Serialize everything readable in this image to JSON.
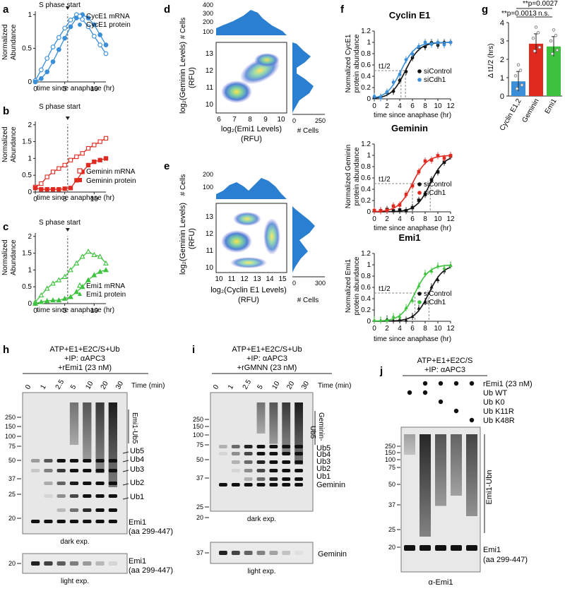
{
  "panels": {
    "a": {
      "letter": "a",
      "note": "S phase start",
      "xlabel": "time since anaphase (hr)",
      "ylabel1": "Normalized",
      "ylabel2": "Abundance",
      "legend": [
        "CycE1 mRNA",
        "CycE1 protein"
      ],
      "xticks": [
        "0",
        "5",
        "10"
      ],
      "yticks": [
        "0",
        "0.5",
        "1"
      ]
    },
    "b": {
      "letter": "b",
      "note": "S phase start",
      "xlabel": "time since anaphase (hr)",
      "ylabel1": "Normalized",
      "ylabel2": "Abundance",
      "legend": [
        "Geminin mRNA",
        "Geminin protein"
      ],
      "xticks": [
        "0",
        "5",
        "10"
      ],
      "yticks": [
        "0",
        "0.5",
        "1",
        "1.5",
        "2"
      ]
    },
    "c": {
      "letter": "c",
      "note": "S phase start",
      "xlabel": "time since anaphase (hr)",
      "ylabel1": "Normalized",
      "ylabel2": "Abundance",
      "legend": [
        "Emi1 mRNA",
        "Emi1 protein"
      ],
      "xticks": [
        "0",
        "5",
        "10"
      ],
      "yticks": [
        "0",
        "0.5",
        "1",
        "1.5",
        "2"
      ]
    },
    "d": {
      "letter": "d",
      "hist_label": "# Cells",
      "hist_ticks": [
        "100",
        "200",
        "300",
        "400"
      ],
      "ylabel": "log₂(Geminin Levels)",
      "yunit": "(RFU)",
      "xlabel": "log₂(Emi1 Levels)",
      "xunit": "(RFU)",
      "xticks": [
        "6",
        "7",
        "8",
        "9",
        "10"
      ],
      "yticks": [
        "10",
        "11",
        "12",
        "13"
      ],
      "side_label": "# Cells",
      "side_ticks": [
        "0",
        "250"
      ]
    },
    "e": {
      "letter": "e",
      "hist_label": "# Cells",
      "hist_ticks": [
        "100",
        "200"
      ],
      "ylabel": "log₂(Geminin Levels)",
      "yunit": "(RFU)",
      "xlabel": "log₂(Cyclin E1 Levels)",
      "xunit": "(RFU)",
      "xticks": [
        "10",
        "11",
        "12",
        "13",
        "14",
        "15"
      ],
      "yticks": [
        "10",
        "11",
        "12",
        "13"
      ],
      "side_label": "# Cells",
      "side_ticks": [
        "0",
        "300"
      ]
    },
    "f": {
      "letter": "f",
      "xlabel": "time since anaphase (hr)",
      "xticks": [
        "0",
        "2",
        "4",
        "6",
        "8",
        "10",
        "12"
      ],
      "yticks": [
        "0",
        "0.2",
        "0.4",
        "0.6",
        "0.8",
        "1",
        "1.2"
      ],
      "t12": "t1/2",
      "subs": [
        {
          "title": "Cyclin E1",
          "ylabel1": "Normalized CycE1",
          "ylabel2": "protein abundance",
          "legend": [
            "siControl",
            "siCdh1"
          ],
          "color": "#3a8fd8"
        },
        {
          "title": "Geminin",
          "ylabel1": "Normalized Geminin",
          "ylabel2": "protein abundance",
          "legend": [
            "siControl",
            "siCdh1"
          ],
          "color": "#e02a20"
        },
        {
          "title": "Emi1",
          "ylabel1": "Normalized Emi1",
          "ylabel2": "protein abundance",
          "legend": [
            "siControl",
            "siCdh1"
          ],
          "color": "#3cc23c"
        }
      ]
    },
    "g": {
      "letter": "g",
      "ylabel": "Δ t1/2 (hrs)",
      "yticks": [
        "0",
        "1",
        "2",
        "3",
        "4"
      ],
      "sig": [
        "**p=0.0027",
        "**p=0.0013",
        "n.s."
      ],
      "bars": [
        {
          "label": "Cyclin E1,2",
          "value": 0.8,
          "color": "#3a8fd8"
        },
        {
          "label": "Geminin",
          "value": 2.85,
          "color": "#e02a20"
        },
        {
          "label": "Emi1",
          "value": 2.7,
          "color": "#3cc23c"
        }
      ]
    },
    "h": {
      "letter": "h",
      "header": [
        "ATP+E1+E2C/S+Ub",
        "+IP: αAPC3",
        "+rEmi1 (23 nM)"
      ],
      "time_label": "Time (min)",
      "times": [
        "0",
        "1",
        "2.5",
        "5",
        "10",
        "20",
        "30"
      ],
      "mw": [
        "250",
        "150",
        "100",
        "75",
        "50",
        "37",
        "25",
        "20"
      ],
      "mw2": [
        "20"
      ],
      "bands": [
        "Emi1-Ub5",
        "Ub5",
        "Ub4",
        "Ub3",
        "Ub2",
        "Ub1"
      ],
      "emi1": "Emi1",
      "emi1_aa": "(aa 299-447)",
      "dark": "dark exp.",
      "light": "light exp."
    },
    "i": {
      "letter": "i",
      "header": [
        "ATP+E1+E2C/S+Ub",
        "+IP: αAPC3",
        "+rGMNN (23 nM)"
      ],
      "time_label": "Time (min)",
      "times": [
        "0",
        "1",
        "2.5",
        "5",
        "10",
        "20",
        "30"
      ],
      "mw": [
        "250",
        "150",
        "100",
        "75",
        "50",
        "37",
        "25",
        "20"
      ],
      "mw2": [
        "37"
      ],
      "bands": [
        "Geminin-",
        "Ub5",
        "Ub5",
        "Ub4",
        "Ub3",
        "Ub2",
        "Ub1",
        "Geminin"
      ],
      "bottom_label": "Geminin",
      "dark": "dark exp.",
      "light": "light exp."
    },
    "j": {
      "letter": "j",
      "header": [
        "ATP+E1+E2C/S",
        "+IP: αAPC3"
      ],
      "conds": [
        "rEmi1 (23 nM)",
        "Ub WT",
        "Ub K0",
        "Ub K11R",
        "Ub K48R"
      ],
      "mw": [
        "250",
        "150",
        "100",
        "75",
        "50",
        "37",
        "25",
        "20"
      ],
      "band": "Emi1-Ubn",
      "emi1": "Emi1",
      "emi1_aa": "(aa 299-447)",
      "blot": "α-Emi1"
    }
  }
}
